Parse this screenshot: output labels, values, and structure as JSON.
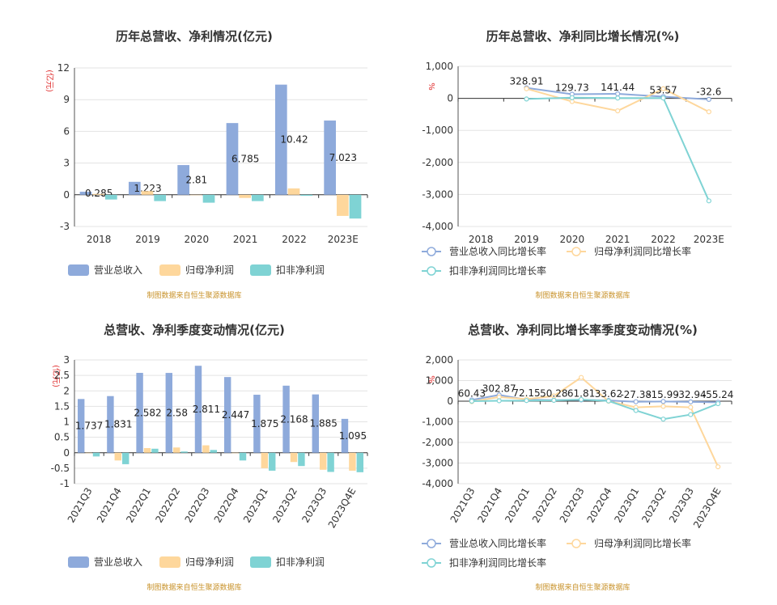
{
  "source_note": "制图数据来自恒生聚源数据库",
  "colors": {
    "revenue": "#8eaadb",
    "net": "#fed79c",
    "deducted": "#7fd3d4"
  },
  "chart_data": [
    {
      "type": "bar",
      "title": "历年总营收、净利情况(亿元)",
      "ylabel": "(亿元)",
      "ylim": [
        -3,
        12
      ],
      "yticks": [
        "-3",
        "0",
        "3",
        "6",
        "9",
        "12"
      ],
      "categories": [
        "2018",
        "2019",
        "2020",
        "2021",
        "2022",
        "2023E"
      ],
      "series": [
        {
          "name": "营业总收入",
          "values": [
            0.285,
            1.223,
            2.81,
            6.785,
            10.42,
            7.023
          ],
          "labels": [
            "0.285",
            "1.223",
            "2.81",
            "6.785",
            "10.42",
            "7.023"
          ]
        },
        {
          "name": "归母净利润",
          "values": [
            0.08,
            0.35,
            0.0,
            -0.3,
            0.6,
            -2.0
          ]
        },
        {
          "name": "扣非净利润",
          "values": [
            -0.45,
            -0.6,
            -0.75,
            -0.6,
            -0.1,
            -2.25
          ]
        }
      ]
    },
    {
      "type": "line",
      "title": "历年总营收、净利同比增长情况(%)",
      "ylabel": "%",
      "ylim": [
        -4000,
        1000
      ],
      "yticks": [
        "-4,000",
        "-3,000",
        "-2,000",
        "-1,000",
        "0",
        "1,000"
      ],
      "categories": [
        "2018",
        "2019",
        "2020",
        "2021",
        "2022",
        "2023E"
      ],
      "series": [
        {
          "name": "营业总收入同比增长率",
          "values": [
            null,
            328.91,
            129.73,
            141.44,
            53.57,
            -32.6
          ],
          "labels": [
            "",
            "328.91",
            "129.73",
            "141.44",
            "53.57",
            "-32.6"
          ]
        },
        {
          "name": "归母净利润同比增长率",
          "values": [
            null,
            300,
            -100,
            -390,
            300,
            -420
          ]
        },
        {
          "name": "扣非净利润同比增长率",
          "values": [
            null,
            -20,
            20,
            10,
            10,
            -3200
          ]
        }
      ]
    },
    {
      "type": "bar",
      "title": "总营收、净利季度变动情况(亿元)",
      "ylabel": "(亿元)",
      "ylim": [
        -1,
        3
      ],
      "yticks": [
        "-1",
        "-0.5",
        "0",
        "0.5",
        "1",
        "1.5",
        "2",
        "2.5",
        "3"
      ],
      "categories": [
        "2021Q3",
        "2021Q4",
        "2022Q1",
        "2022Q2",
        "2022Q3",
        "2022Q4",
        "2023Q1",
        "2023Q2",
        "2023Q3",
        "2023Q4E"
      ],
      "series": [
        {
          "name": "营业总收入",
          "values": [
            1.737,
            1.831,
            2.582,
            2.58,
            2.811,
            2.447,
            1.875,
            2.168,
            1.885,
            1.095
          ],
          "labels": [
            "1.737",
            "1.831",
            "2.582",
            "2.58",
            "2.811",
            "2.447",
            "1.875",
            "2.168",
            "1.885",
            "1.095"
          ]
        },
        {
          "name": "归母净利润",
          "values": [
            0.0,
            -0.25,
            0.15,
            0.17,
            0.24,
            0.0,
            -0.5,
            -0.3,
            -0.55,
            -0.58
          ]
        },
        {
          "name": "扣非净利润",
          "values": [
            -0.12,
            -0.37,
            0.13,
            0.04,
            0.09,
            -0.25,
            -0.58,
            -0.43,
            -0.62,
            -0.63
          ]
        }
      ]
    },
    {
      "type": "line",
      "title": "总营收、净利同比增长率季度变动情况(%)",
      "ylabel": "%",
      "ylim": [
        -4000,
        2000
      ],
      "yticks": [
        "-4,000",
        "-3,000",
        "-2,000",
        "-1,000",
        "0",
        "1,000",
        "2,000"
      ],
      "categories": [
        "2021Q3",
        "2021Q4",
        "2022Q1",
        "2022Q2",
        "2022Q3",
        "2022Q4",
        "2023Q1",
        "2023Q2",
        "2023Q3",
        "2023Q4E"
      ],
      "series": [
        {
          "name": "营业总收入同比增长率",
          "values": [
            60.43,
            302.87,
            72.15,
            50.28,
            61.81,
            33.62,
            -27.38,
            -15.99,
            -32.94,
            -55.24
          ],
          "labels": [
            "60.43",
            "302.87",
            "72.15",
            "50.28",
            "61.81",
            "33.62",
            "-27.38",
            "-15.99",
            "-32.94",
            "-55.24"
          ]
        },
        {
          "name": "归母净利润同比增长率",
          "values": [
            -20,
            200,
            100,
            250,
            1150,
            0,
            -300,
            -250,
            -300,
            -3180
          ]
        },
        {
          "name": "扣非净利润同比增长率",
          "values": [
            0,
            20,
            30,
            40,
            80,
            10,
            -450,
            -870,
            -650,
            -120
          ]
        }
      ]
    }
  ]
}
